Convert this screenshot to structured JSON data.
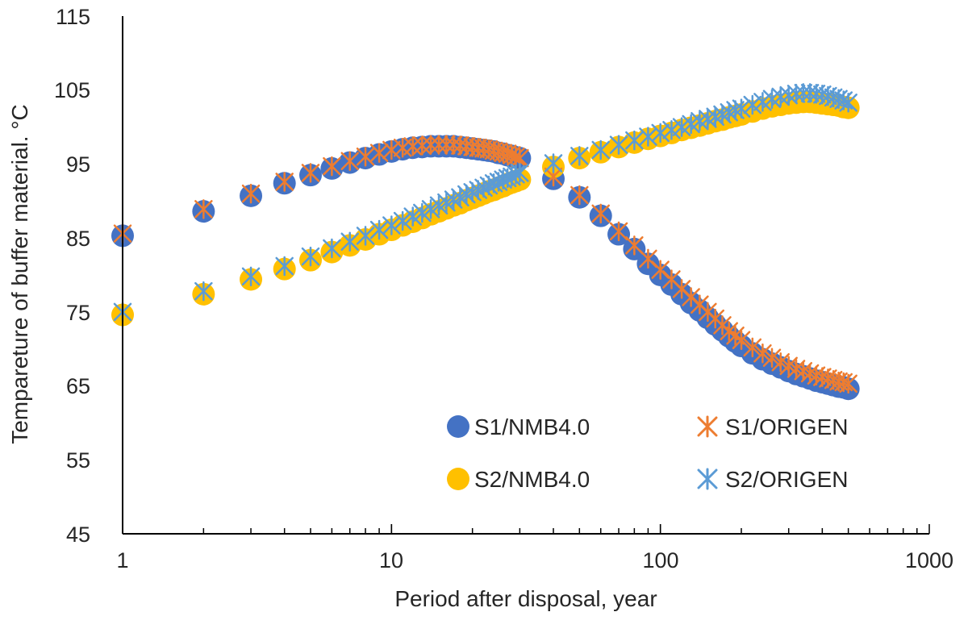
{
  "chart_data": {
    "type": "scatter",
    "title": "",
    "xlabel": "Period after disposal, year",
    "ylabel": "Tempareture of buffer material. °C",
    "xscale": "log",
    "xlim": [
      1,
      1000
    ],
    "ylim": [
      45,
      115
    ],
    "x_ticks": [
      "1",
      "10",
      "100",
      "1000"
    ],
    "y_ticks": [
      "45",
      "55",
      "65",
      "75",
      "85",
      "95",
      "105",
      "115"
    ],
    "grid": false,
    "legend_position": "bottom-right",
    "series": [
      {
        "name": "S1/NMB4.0",
        "marker": "circle",
        "color": "#4472C4",
        "x": [
          1,
          2,
          3,
          4,
          5,
          6,
          7,
          8,
          9,
          10,
          11,
          12,
          13,
          14,
          15,
          16,
          17,
          18,
          19,
          20,
          21,
          22,
          23,
          24,
          25,
          26,
          27,
          28,
          29,
          30,
          40,
          50,
          60,
          70,
          80,
          90,
          100,
          110,
          120,
          130,
          140,
          150,
          160,
          170,
          180,
          190,
          200,
          220,
          240,
          260,
          280,
          300,
          320,
          340,
          360,
          380,
          400,
          420,
          440,
          460,
          480,
          500
        ],
        "y": [
          85.3,
          88.6,
          90.7,
          92.4,
          93.5,
          94.4,
          95.2,
          95.8,
          96.3,
          96.7,
          97.0,
          97.2,
          97.3,
          97.4,
          97.4,
          97.4,
          97.4,
          97.3,
          97.2,
          97.1,
          97.0,
          96.9,
          96.8,
          96.7,
          96.5,
          96.4,
          96.2,
          96.1,
          95.9,
          95.8,
          93.0,
          90.5,
          88.0,
          85.5,
          83.5,
          81.5,
          80.0,
          78.7,
          77.4,
          76.2,
          75.2,
          74.2,
          73.3,
          72.5,
          71.7,
          71.0,
          70.4,
          69.4,
          68.6,
          68.0,
          67.5,
          67.0,
          66.6,
          66.3,
          66.0,
          65.7,
          65.5,
          65.3,
          65.1,
          64.9,
          64.8,
          64.6
        ]
      },
      {
        "name": "S1/ORIGEN",
        "marker": "asterisk",
        "color": "#ED7D31",
        "x": [
          1,
          2,
          3,
          4,
          5,
          6,
          7,
          8,
          9,
          10,
          11,
          12,
          13,
          14,
          15,
          16,
          17,
          18,
          19,
          20,
          21,
          22,
          23,
          24,
          25,
          26,
          27,
          28,
          29,
          30,
          40,
          50,
          60,
          70,
          80,
          90,
          100,
          110,
          120,
          130,
          140,
          150,
          160,
          170,
          180,
          190,
          200,
          220,
          240,
          260,
          280,
          300,
          320,
          340,
          360,
          380,
          400,
          420,
          440,
          460,
          480,
          500
        ],
        "y": [
          85.6,
          88.9,
          91.0,
          92.6,
          93.8,
          94.7,
          95.4,
          96.0,
          96.5,
          96.9,
          97.2,
          97.4,
          97.5,
          97.6,
          97.6,
          97.6,
          97.6,
          97.5,
          97.4,
          97.3,
          97.2,
          97.1,
          97.0,
          96.8,
          96.7,
          96.5,
          96.4,
          96.2,
          96.0,
          95.8,
          93.3,
          90.8,
          88.3,
          85.9,
          84.0,
          82.2,
          80.7,
          79.4,
          78.1,
          77.0,
          76.0,
          75.0,
          74.1,
          73.2,
          72.4,
          71.8,
          71.2,
          70.2,
          69.4,
          68.8,
          68.2,
          67.7,
          67.3,
          67.0,
          66.7,
          66.4,
          66.2,
          66.0,
          65.8,
          65.6,
          65.5,
          65.3
        ]
      },
      {
        "name": "S2/NMB4.0",
        "marker": "circle",
        "color": "#FFC000",
        "x": [
          1,
          2,
          3,
          4,
          5,
          6,
          7,
          8,
          9,
          10,
          11,
          12,
          13,
          14,
          15,
          16,
          17,
          18,
          19,
          20,
          21,
          22,
          23,
          24,
          25,
          26,
          27,
          28,
          29,
          30,
          40,
          50,
          60,
          70,
          80,
          90,
          100,
          110,
          120,
          130,
          140,
          150,
          160,
          170,
          180,
          190,
          200,
          220,
          240,
          260,
          280,
          300,
          320,
          340,
          360,
          380,
          400,
          420,
          440,
          460,
          480,
          500
        ],
        "y": [
          74.6,
          77.4,
          79.4,
          80.8,
          82.0,
          83.1,
          84.0,
          84.8,
          85.5,
          86.1,
          86.7,
          87.2,
          87.7,
          88.2,
          88.6,
          89.0,
          89.4,
          89.7,
          90.1,
          90.4,
          90.7,
          91.0,
          91.3,
          91.5,
          91.8,
          92.0,
          92.3,
          92.5,
          92.7,
          92.9,
          94.6,
          95.8,
          96.6,
          97.3,
          97.9,
          98.4,
          98.8,
          99.2,
          99.6,
          99.9,
          100.2,
          100.5,
          100.8,
          101.0,
          101.3,
          101.5,
          101.7,
          102.1,
          102.5,
          102.8,
          103.0,
          103.2,
          103.3,
          103.4,
          103.4,
          103.3,
          103.2,
          103.1,
          103.0,
          102.9,
          102.7,
          102.6
        ]
      },
      {
        "name": "S2/ORIGEN",
        "marker": "asterisk",
        "color": "#5B9BD5",
        "x": [
          1,
          2,
          3,
          4,
          5,
          6,
          7,
          8,
          9,
          10,
          11,
          12,
          13,
          14,
          15,
          16,
          17,
          18,
          19,
          20,
          21,
          22,
          23,
          24,
          25,
          26,
          27,
          28,
          29,
          30,
          40,
          50,
          60,
          70,
          80,
          90,
          100,
          110,
          120,
          130,
          140,
          150,
          160,
          170,
          180,
          190,
          200,
          220,
          240,
          260,
          280,
          300,
          320,
          340,
          360,
          380,
          400,
          420,
          440,
          460,
          480,
          500
        ],
        "y": [
          75.0,
          77.8,
          79.8,
          81.2,
          82.5,
          83.6,
          84.5,
          85.3,
          86.1,
          86.7,
          87.3,
          87.9,
          88.4,
          88.9,
          89.4,
          89.8,
          90.2,
          90.5,
          90.9,
          91.2,
          91.5,
          91.8,
          92.1,
          92.4,
          92.6,
          92.9,
          93.1,
          93.3,
          93.6,
          93.8,
          95.1,
          96.1,
          96.9,
          97.6,
          98.2,
          98.7,
          99.2,
          99.6,
          100.0,
          100.4,
          100.8,
          101.1,
          101.4,
          101.7,
          102.0,
          102.3,
          102.5,
          103.0,
          103.4,
          103.8,
          104.1,
          104.3,
          104.5,
          104.6,
          104.6,
          104.5,
          104.4,
          104.2,
          104.0,
          103.8,
          103.6,
          103.3
        ]
      }
    ]
  }
}
